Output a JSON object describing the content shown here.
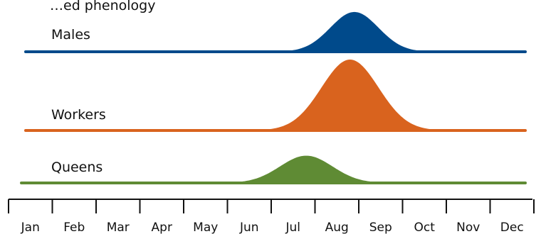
{
  "chart_data": {
    "type": "area",
    "title": "…ed phenology",
    "months": [
      "Jan",
      "Feb",
      "Mar",
      "Apr",
      "May",
      "Jun",
      "Jul",
      "Aug",
      "Sep",
      "Oct",
      "Nov",
      "Dec"
    ],
    "series": [
      {
        "name": "Males",
        "color": "#004a8b",
        "peak_month": 7.9,
        "peak_height": 0.85,
        "width_months": 0.55
      },
      {
        "name": "Workers",
        "color": "#d9631e",
        "peak_month": 7.8,
        "peak_height": 1.0,
        "width_months": 0.65
      },
      {
        "name": "Queens",
        "color": "#5f8b34",
        "peak_month": 6.8,
        "peak_height": 0.62,
        "width_months": 0.6
      }
    ]
  }
}
